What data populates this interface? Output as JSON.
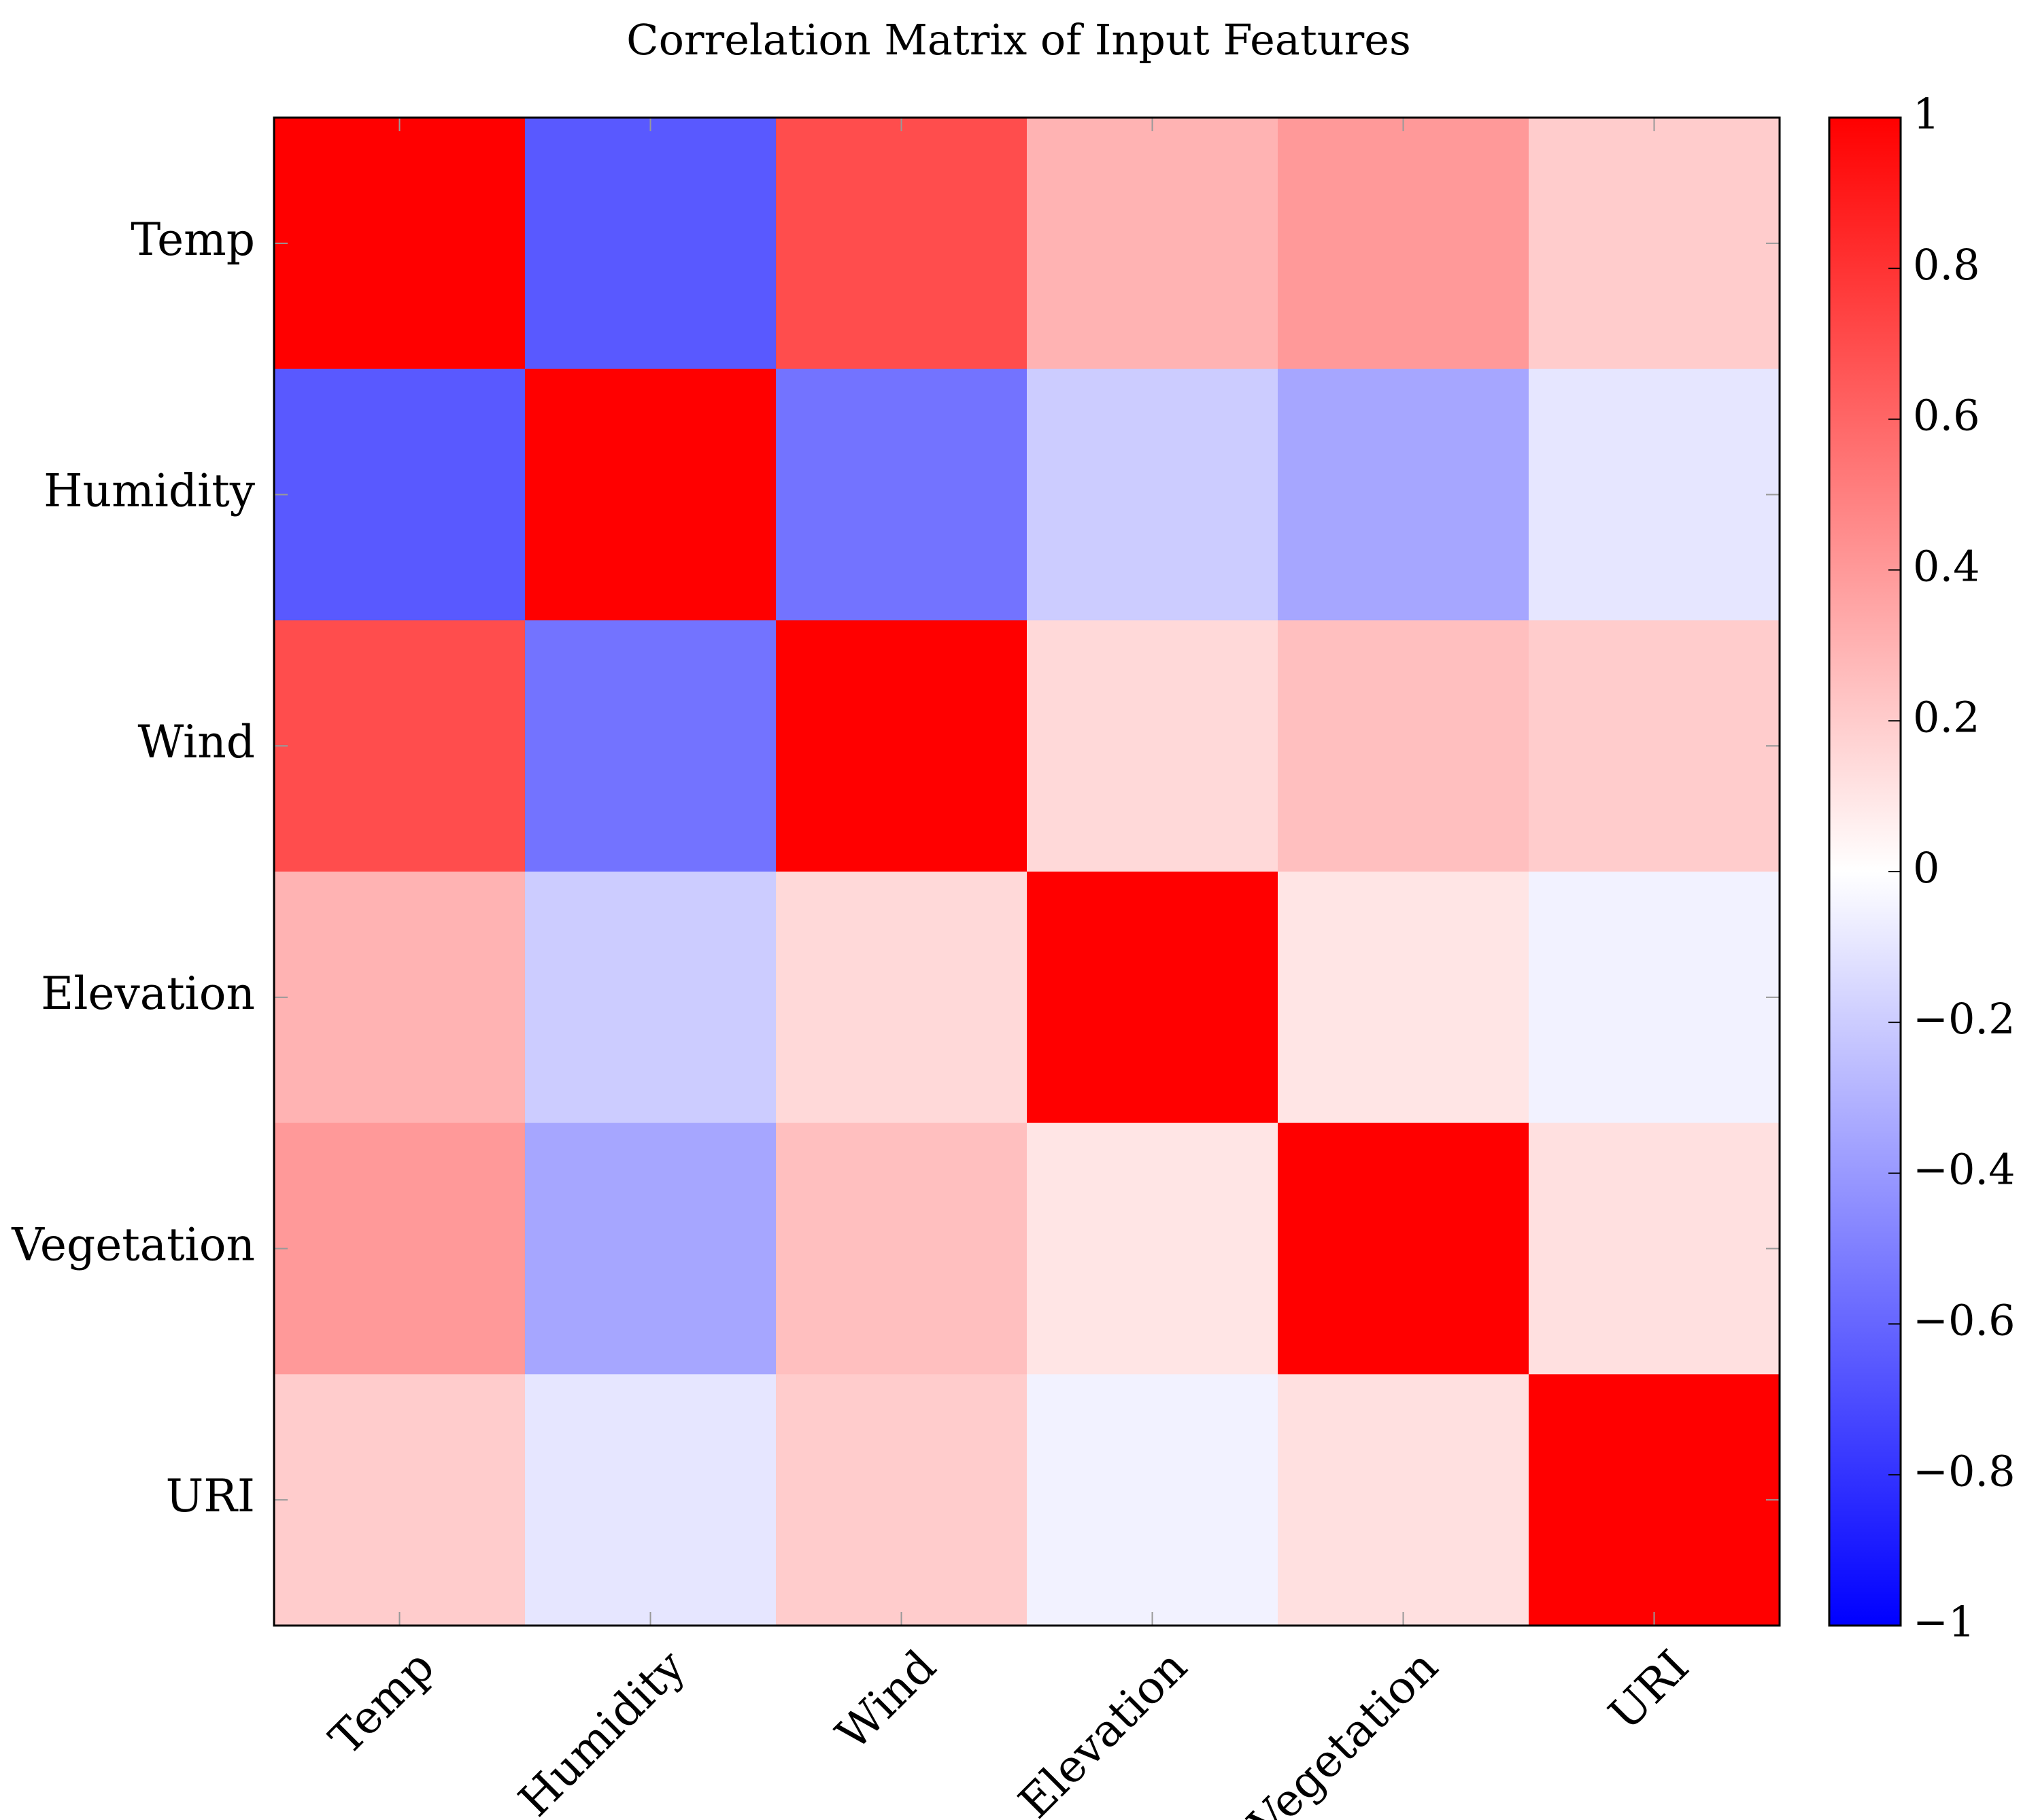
{
  "chart_data": {
    "type": "heatmap",
    "title": "Correlation Matrix of Input Features",
    "x_categories": [
      "Temp",
      "Humidity",
      "Wind",
      "Elevation",
      "Vegetation",
      "URI"
    ],
    "y_categories": [
      "Temp",
      "Humidity",
      "Wind",
      "Elevation",
      "Vegetation",
      "URI"
    ],
    "values": [
      [
        1.0,
        -0.65,
        0.7,
        0.3,
        0.4,
        0.2
      ],
      [
        -0.65,
        1.0,
        -0.55,
        -0.2,
        -0.35,
        -0.1
      ],
      [
        0.7,
        -0.55,
        1.0,
        0.15,
        0.25,
        0.2
      ],
      [
        0.3,
        -0.2,
        0.15,
        1.0,
        0.1,
        -0.05
      ],
      [
        0.4,
        -0.35,
        0.25,
        0.1,
        1.0,
        0.12
      ],
      [
        0.2,
        -0.1,
        0.2,
        -0.05,
        0.12,
        1.0
      ]
    ],
    "colorbar": {
      "range": [
        -1,
        1
      ],
      "ticks": [
        1,
        0.8,
        0.6,
        0.4,
        0.2,
        0,
        -0.2,
        -0.4,
        -0.6,
        -0.8,
        -1
      ],
      "tick_labels": [
        "1",
        "0.8",
        "0.6",
        "0.4",
        "0.2",
        "0",
        "−0.2",
        "−0.4",
        "−0.6",
        "−0.8",
        "−1"
      ],
      "colors": {
        "low": "#0000ff",
        "mid": "#ffffff",
        "high": "#ff0000"
      }
    },
    "xlabel": "",
    "ylabel": "",
    "grid": false,
    "legend": "right"
  }
}
